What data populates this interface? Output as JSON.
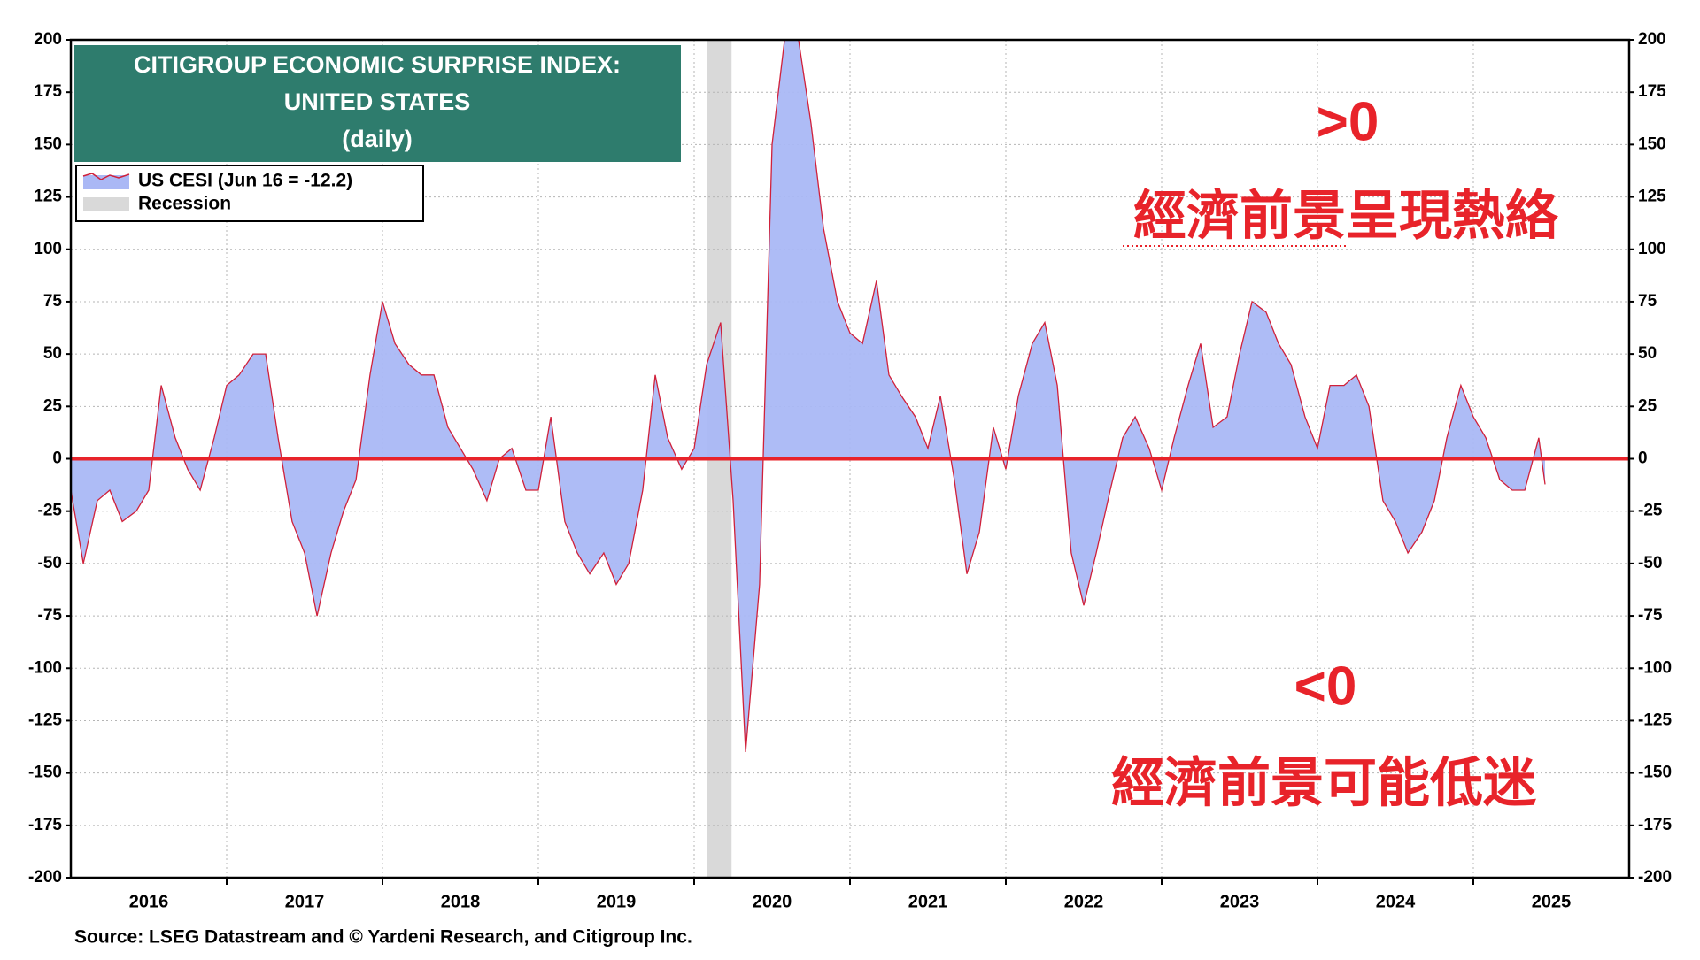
{
  "chart_data": {
    "type": "area",
    "title": [
      "CITIGROUP ECONOMIC SURPRISE INDEX:",
      "UNITED STATES",
      "(daily)"
    ],
    "source": "Source: LSEG Datastream and © Yardeni Research, and Citigroup Inc.",
    "annotations": [
      ">0",
      "經濟前景呈現熱絡",
      "<0",
      "經濟前景可能低迷"
    ],
    "annotation_color": "#e8232a",
    "x": [
      2016.0,
      2016.08,
      2016.17,
      2016.25,
      2016.33,
      2016.42,
      2016.5,
      2016.58,
      2016.67,
      2016.75,
      2016.83,
      2016.92,
      2017.0,
      2017.08,
      2017.17,
      2017.25,
      2017.33,
      2017.42,
      2017.5,
      2017.58,
      2017.67,
      2017.75,
      2017.83,
      2017.92,
      2018.0,
      2018.08,
      2018.17,
      2018.25,
      2018.33,
      2018.42,
      2018.5,
      2018.58,
      2018.67,
      2018.75,
      2018.83,
      2018.92,
      2019.0,
      2019.08,
      2019.17,
      2019.25,
      2019.33,
      2019.42,
      2019.5,
      2019.58,
      2019.67,
      2019.75,
      2019.83,
      2019.92,
      2020.0,
      2020.08,
      2020.17,
      2020.25,
      2020.33,
      2020.42,
      2020.5,
      2020.58,
      2020.67,
      2020.75,
      2020.83,
      2020.92,
      2021.0,
      2021.08,
      2021.17,
      2021.25,
      2021.33,
      2021.42,
      2021.5,
      2021.58,
      2021.67,
      2021.75,
      2021.83,
      2021.92,
      2022.0,
      2022.08,
      2022.17,
      2022.25,
      2022.33,
      2022.42,
      2022.5,
      2022.58,
      2022.67,
      2022.75,
      2022.83,
      2022.92,
      2023.0,
      2023.08,
      2023.17,
      2023.25,
      2023.33,
      2023.42,
      2023.5,
      2023.58,
      2023.67,
      2023.75,
      2023.83,
      2023.92,
      2024.0,
      2024.08,
      2024.17,
      2024.25,
      2024.33,
      2024.42,
      2024.5,
      2024.58,
      2024.67,
      2024.75,
      2024.83,
      2024.92,
      2025.0,
      2025.08,
      2025.17,
      2025.25,
      2025.33,
      2025.42,
      2025.46
    ],
    "series": [
      {
        "name": "US CESI (Jun 16 = -12.2)",
        "color": "#aab8f5",
        "line_color": "#d0203a",
        "values": [
          -15,
          -50,
          -20,
          -15,
          -30,
          -25,
          -15,
          35,
          10,
          -5,
          -15,
          10,
          35,
          40,
          50,
          50,
          10,
          -30,
          -45,
          -75,
          -45,
          -25,
          -10,
          40,
          75,
          55,
          45,
          40,
          40,
          15,
          5,
          -5,
          -20,
          0,
          5,
          -15,
          -15,
          20,
          -30,
          -45,
          -55,
          -45,
          -60,
          -50,
          -15,
          40,
          10,
          -5,
          5,
          45,
          65,
          -20,
          -140,
          -60,
          150,
          200,
          200,
          160,
          110,
          75,
          60,
          55,
          85,
          40,
          30,
          20,
          5,
          30,
          -10,
          -55,
          -35,
          15,
          -5,
          30,
          55,
          65,
          35,
          -45,
          -70,
          -45,
          -15,
          10,
          20,
          5,
          -15,
          10,
          35,
          55,
          15,
          20,
          50,
          75,
          70,
          55,
          45,
          20,
          5,
          35,
          35,
          40,
          25,
          -20,
          -30,
          -45,
          -35,
          -20,
          10,
          35,
          20,
          10,
          -10,
          -15,
          -15,
          10,
          -12.2
        ]
      }
    ],
    "recession": {
      "name": "Recession",
      "start": 2020.08,
      "end": 2020.24,
      "color": "#d9d9d9"
    },
    "reference_line": {
      "y": 0,
      "color": "#e8232a"
    },
    "xlim": [
      2016,
      2026
    ],
    "xticks": [
      {
        "value": 2016.5,
        "label": "2016"
      },
      {
        "value": 2017.5,
        "label": "2017"
      },
      {
        "value": 2018.5,
        "label": "2018"
      },
      {
        "value": 2019.5,
        "label": "2019"
      },
      {
        "value": 2020.5,
        "label": "2020"
      },
      {
        "value": 2021.5,
        "label": "2021"
      },
      {
        "value": 2022.5,
        "label": "2022"
      },
      {
        "value": 2023.5,
        "label": "2023"
      },
      {
        "value": 2024.5,
        "label": "2024"
      },
      {
        "value": 2025.5,
        "label": "2025"
      }
    ],
    "ylim": [
      -200,
      200
    ],
    "yticks": [
      -200,
      -175,
      -150,
      -125,
      -100,
      -75,
      -50,
      -25,
      0,
      25,
      50,
      75,
      100,
      125,
      150,
      175,
      200
    ],
    "grid": true,
    "title_box_color": "#2e7c6d"
  }
}
